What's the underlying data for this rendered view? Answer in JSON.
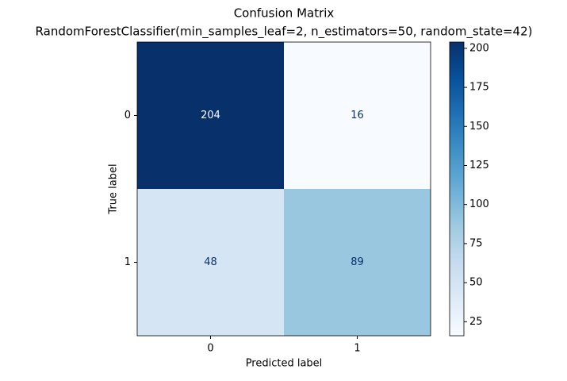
{
  "chart_data": {
    "type": "heatmap",
    "title": "Confusion Matrix",
    "subtitle": "RandomForestClassifier(min_samples_leaf=2, n_estimators=50, random_state=42)",
    "xlabel": "Predicted label",
    "ylabel": "True label",
    "xcategories": [
      "0",
      "1"
    ],
    "ycategories": [
      "0",
      "1"
    ],
    "values": [
      [
        204,
        16
      ],
      [
        48,
        89
      ]
    ],
    "colormap": "Blues",
    "clim": [
      16,
      204
    ],
    "cticks": [
      25,
      50,
      75,
      100,
      125,
      150,
      175,
      200
    ]
  }
}
